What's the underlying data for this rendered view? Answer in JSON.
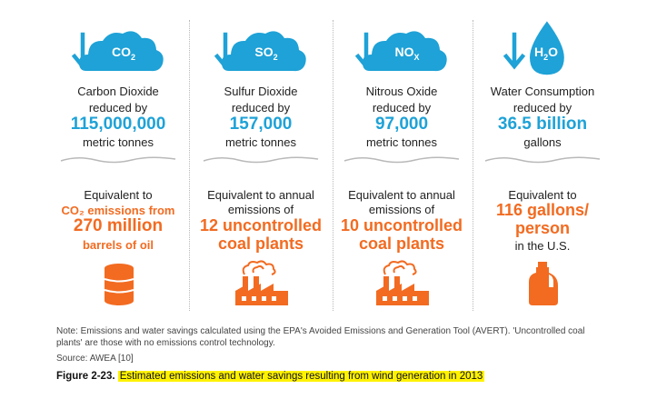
{
  "panels": [
    {
      "formula_main": "CO",
      "formula_sub": "2",
      "name": "Carbon Dioxide",
      "reduced": "reduced by",
      "amount": "115,000,000",
      "unit": "metric tonnes",
      "eq_line1": "Equivalent to",
      "eq_line2": "CO₂ emissions from",
      "eq_line3": "270 million",
      "eq_line4": "barrels of oil",
      "icon": "oil-barrel-icon"
    },
    {
      "formula_main": "SO",
      "formula_sub": "2",
      "name": "Sulfur Dioxide",
      "reduced": "reduced by",
      "amount": "157,000",
      "unit": "metric tonnes",
      "eq_line1": "Equivalent to annual",
      "eq_line2": "emissions of",
      "eq_line3": "12 uncontrolled",
      "eq_line4": "coal plants",
      "icon": "factory-icon"
    },
    {
      "formula_main": "NO",
      "formula_sub": "X",
      "name": "Nitrous Oxide",
      "reduced": "reduced by",
      "amount": "97,000",
      "unit": "metric tonnes",
      "eq_line1": "Equivalent to annual",
      "eq_line2": "emissions of",
      "eq_line3": "10 uncontrolled",
      "eq_line4": "coal plants",
      "icon": "factory-icon"
    },
    {
      "formula_main": "H",
      "formula_sub": "2",
      "formula_tail": "O",
      "name": "Water Consumption",
      "reduced": "reduced by",
      "amount": "36.5 billion",
      "unit": "gallons",
      "eq_line1": "Equivalent to",
      "eq_line2": "116 gallons/",
      "eq_line3": "person",
      "eq_line4": "in the U.S.",
      "icon": "water-jug-icon"
    }
  ],
  "note": "Note: Emissions and water savings calculated using the EPA's Avoided Emissions and Generation Tool (AVERT). 'Uncontrolled coal plants' are those with no emissions control technology.",
  "source": "Source: AWEA [10]",
  "caption": {
    "label": "Figure 2-23.",
    "text": "Estimated emissions and water savings resulting from wind generation in 2013"
  },
  "colors": {
    "blue": "#1ea2d7",
    "orange": "#f26b21",
    "divider": "#b9b9b9"
  }
}
